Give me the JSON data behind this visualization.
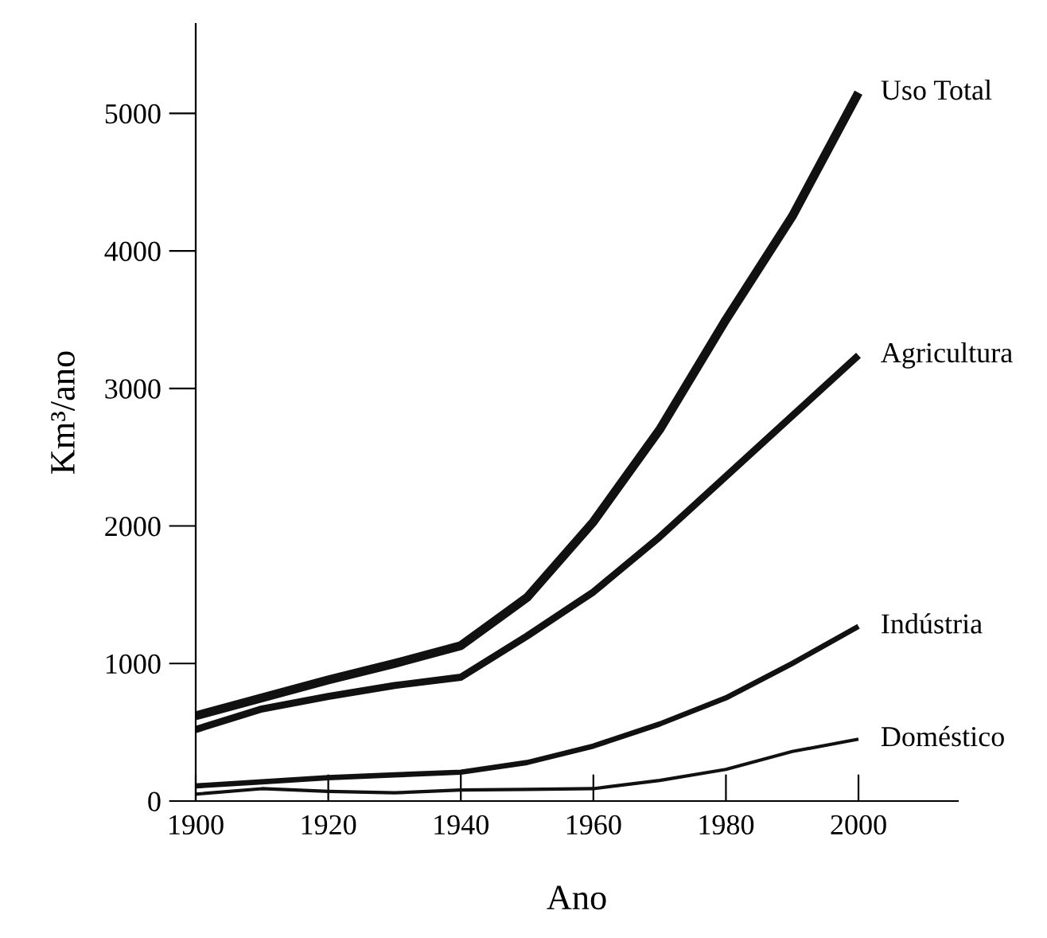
{
  "chart_data": {
    "type": "line",
    "xlabel": "Ano",
    "ylabel": "Km³/ano",
    "x": [
      1900,
      1910,
      1920,
      1930,
      1940,
      1950,
      1960,
      1970,
      1980,
      1990,
      2000
    ],
    "series": [
      {
        "name": "Uso Total",
        "color": "#111111",
        "values": [
          620,
          750,
          880,
          1000,
          1130,
          1480,
          2030,
          2700,
          3500,
          4250,
          5150
        ]
      },
      {
        "name": "Agricultura",
        "color": "#111111",
        "values": [
          520,
          670,
          760,
          840,
          900,
          1200,
          1520,
          1920,
          2360,
          2800,
          3240
        ]
      },
      {
        "name": "Indústria",
        "color": "#111111",
        "values": [
          110,
          140,
          170,
          190,
          210,
          280,
          400,
          560,
          750,
          1000,
          1270
        ]
      },
      {
        "name": "Doméstico",
        "color": "#111111",
        "values": [
          50,
          90,
          70,
          60,
          80,
          85,
          90,
          150,
          230,
          360,
          450
        ]
      }
    ],
    "xlim": [
      1900,
      2015
    ],
    "ylim": [
      0,
      5650
    ],
    "xticks": [
      1900,
      1920,
      1940,
      1960,
      1980,
      2000
    ],
    "yticks": [
      0,
      1000,
      2000,
      3000,
      4000,
      5000
    ],
    "grid": false,
    "legend": false,
    "marker": "none",
    "line_style": "solid"
  }
}
